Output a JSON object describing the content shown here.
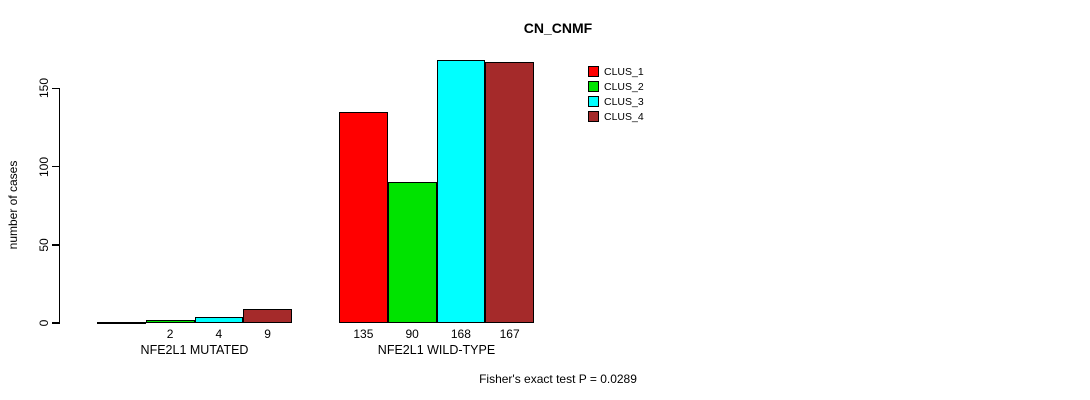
{
  "chart_data": {
    "type": "bar",
    "title": "CN_CNMF",
    "ylabel": "number of cases",
    "annotation": "Fisher's exact test P = 0.0289",
    "categories": [
      "NFE2L1 MUTATED",
      "NFE2L1 WILD-TYPE"
    ],
    "series": [
      {
        "name": "CLUS_1",
        "color": "#FF0000",
        "values": [
          0,
          135
        ]
      },
      {
        "name": "CLUS_2",
        "color": "#00E300",
        "values": [
          2,
          90
        ]
      },
      {
        "name": "CLUS_3",
        "color": "#00FFFF",
        "values": [
          4,
          168
        ]
      },
      {
        "name": "CLUS_4",
        "color": "#A52A2A",
        "values": [
          9,
          167
        ]
      }
    ],
    "bar_labels": [
      [
        "",
        "2",
        "4",
        "9"
      ],
      [
        "135",
        "90",
        "168",
        "167"
      ]
    ],
    "yticks": [
      0,
      50,
      100,
      150
    ],
    "ylim": [
      0,
      175
    ],
    "grid": false,
    "legend_position": "right-top",
    "axis_label_rotation": "vertical"
  }
}
